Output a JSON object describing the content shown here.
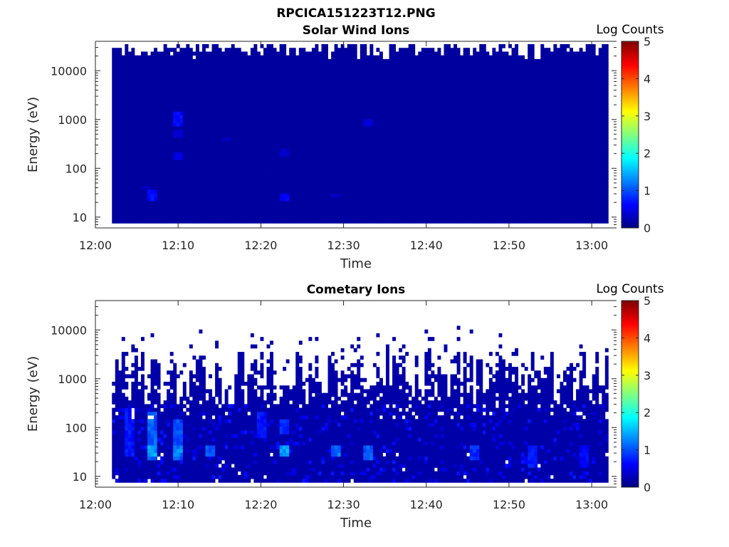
{
  "figure_title": "RPCICA151223T12.PNG",
  "chart_data": [
    {
      "type": "heatmap",
      "title": "Solar Wind Ions",
      "xlabel": "Time",
      "ylabel": "Energy (eV)",
      "y_scale": "log",
      "ylim": [
        6,
        40000
      ],
      "y_ticks": [
        10,
        100,
        1000,
        10000
      ],
      "y_tick_labels": [
        "10",
        "100",
        "1000",
        "10000"
      ],
      "xlim": [
        "12:00",
        "13:03"
      ],
      "x_ticks": [
        "12:00",
        "12:10",
        "12:20",
        "12:30",
        "12:40",
        "12:50",
        "13:00"
      ],
      "data_start": "12:02",
      "data_end": "13:02",
      "colorbar": {
        "label": "Log Counts",
        "range": [
          0,
          5
        ],
        "ticks": [
          "0",
          "1",
          "2",
          "3",
          "4",
          "5"
        ],
        "colormap": "jet"
      },
      "background_level": 0.15,
      "upper_cutoff_eV": 17000,
      "features": [
        {
          "time": "12:10",
          "energy_min": 700,
          "energy_max": 1400,
          "level": 0.7
        },
        {
          "time": "12:10",
          "energy_min": 400,
          "energy_max": 600,
          "level": 0.45
        },
        {
          "time": "12:10",
          "energy_min": 140,
          "energy_max": 220,
          "level": 0.55
        },
        {
          "time": "12:07",
          "energy_min": 23,
          "energy_max": 35,
          "level": 0.75
        },
        {
          "time": "12:23",
          "energy_min": 22,
          "energy_max": 33,
          "level": 0.7
        },
        {
          "time": "12:23",
          "energy_min": 180,
          "energy_max": 250,
          "level": 0.4
        },
        {
          "time": "12:33",
          "energy_min": 700,
          "energy_max": 950,
          "level": 0.45
        },
        {
          "time": "12:29",
          "energy_min": 27,
          "energy_max": 33,
          "level": 0.35
        },
        {
          "time": "12:16",
          "energy_min": 380,
          "energy_max": 440,
          "level": 0.35
        },
        {
          "time": "12:06",
          "energy_min": 38,
          "energy_max": 44,
          "level": 0.35
        }
      ]
    },
    {
      "type": "heatmap",
      "title": "Cometary Ions",
      "xlabel": "Time",
      "ylabel": "Energy (eV)",
      "y_scale": "log",
      "ylim": [
        6,
        40000
      ],
      "y_ticks": [
        10,
        100,
        1000,
        10000
      ],
      "y_tick_labels": [
        "10",
        "100",
        "1000",
        "10000"
      ],
      "xlim": [
        "12:00",
        "13:03"
      ],
      "x_ticks": [
        "12:00",
        "12:10",
        "12:20",
        "12:30",
        "12:40",
        "12:50",
        "13:00"
      ],
      "data_start": "12:02",
      "data_end": "13:02",
      "colorbar": {
        "label": "Log Counts",
        "range": [
          0,
          5
        ],
        "ticks": [
          "0",
          "1",
          "2",
          "3",
          "4",
          "5"
        ],
        "colormap": "jet"
      },
      "background_level": 0.2,
      "features": [
        {
          "time": "12:04",
          "energy_min": 25,
          "energy_max": 250,
          "level": 0.8
        },
        {
          "time": "12:07",
          "energy_min": 20,
          "energy_max": 220,
          "level": 1.2
        },
        {
          "time": "12:07",
          "energy_min": 28,
          "energy_max": 40,
          "level": 1.6
        },
        {
          "time": "12:10",
          "energy_min": 20,
          "energy_max": 160,
          "level": 1.1
        },
        {
          "time": "12:10",
          "energy_min": 28,
          "energy_max": 40,
          "level": 1.4
        },
        {
          "time": "12:14",
          "energy_min": 25,
          "energy_max": 45,
          "level": 1.2
        },
        {
          "time": "12:23",
          "energy_min": 25,
          "energy_max": 45,
          "level": 1.6
        },
        {
          "time": "12:23",
          "energy_min": 80,
          "energy_max": 150,
          "level": 0.9
        },
        {
          "time": "12:20",
          "energy_min": 60,
          "energy_max": 200,
          "level": 0.8
        },
        {
          "time": "12:29",
          "energy_min": 25,
          "energy_max": 45,
          "level": 1.3
        },
        {
          "time": "12:33",
          "energy_min": 20,
          "energy_max": 40,
          "level": 1.2
        },
        {
          "time": "12:46",
          "energy_min": 20,
          "energy_max": 40,
          "level": 0.9
        },
        {
          "time": "12:53",
          "energy_min": 15,
          "energy_max": 40,
          "level": 0.8
        },
        {
          "time": "12:59",
          "energy_min": 15,
          "energy_max": 40,
          "level": 0.7
        }
      ]
    }
  ]
}
